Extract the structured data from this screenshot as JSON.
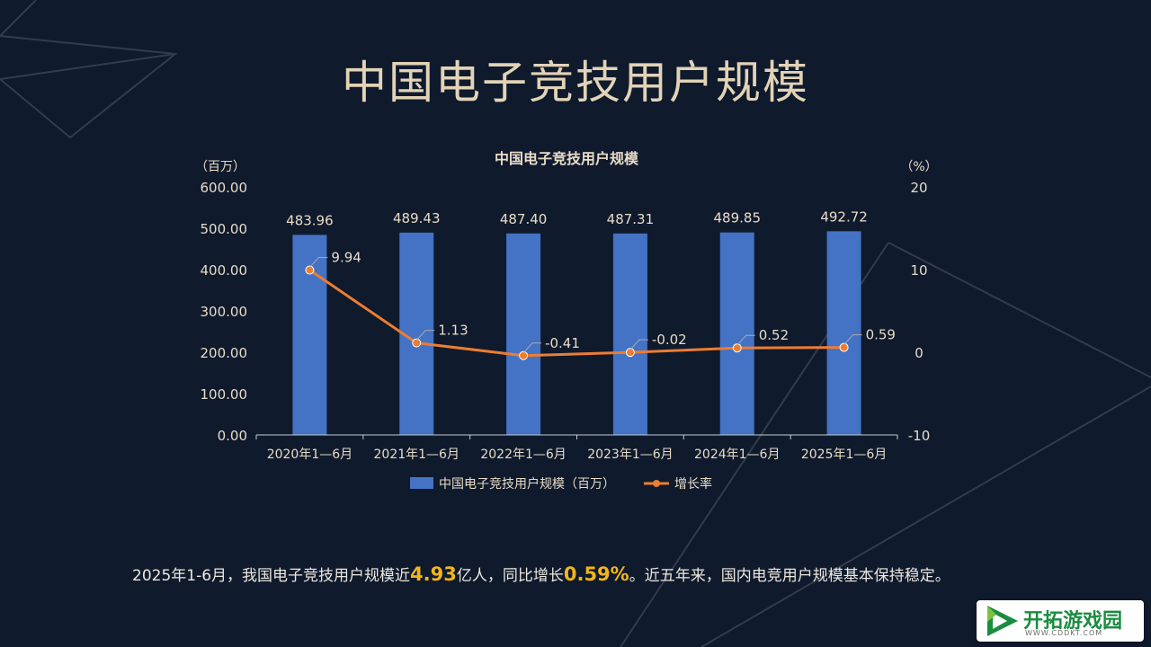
{
  "slide": {
    "title": "中国电子竞技用户规模"
  },
  "chart_data": {
    "type": "bar",
    "title": "中国电子竞技用户规模",
    "y_left_unit": "（百万）",
    "y_right_unit": "（%）",
    "categories": [
      "2020年1—6月",
      "2021年1—6月",
      "2022年1—6月",
      "2023年1—6月",
      "2024年1—6月",
      "2025年1—6月"
    ],
    "series": [
      {
        "name": "中国电子竞技用户规模（百万）",
        "type": "bar",
        "axis": "left",
        "values": [
          483.96,
          489.43,
          487.4,
          487.31,
          489.85,
          492.72
        ],
        "labels": [
          "483.96",
          "489.43",
          "487.40",
          "487.31",
          "489.85",
          "492.72"
        ],
        "color": "#4472c4"
      },
      {
        "name": "增长率",
        "type": "line",
        "axis": "right",
        "values": [
          9.94,
          1.13,
          -0.41,
          -0.02,
          0.52,
          0.59
        ],
        "labels": [
          "9.94",
          "1.13",
          "-0.41",
          "-0.02",
          "0.52",
          "0.59"
        ],
        "color": "#ed7d31"
      }
    ],
    "y_left": {
      "min": 0,
      "max": 600,
      "ticks": [
        "0.00",
        "100.00",
        "200.00",
        "300.00",
        "400.00",
        "500.00",
        "600.00"
      ]
    },
    "y_right": {
      "min": -10,
      "max": 20,
      "ticks": [
        "-10",
        "0",
        "10",
        "20"
      ]
    },
    "grid": false,
    "legend_position": "bottom"
  },
  "summary": {
    "prefix": "2025年1-6月，我国电子竞技用户规模近",
    "value1": "4.93",
    "middle": "亿人，同比增长",
    "value2": "0.59%",
    "suffix": "。近五年来，国内电竞用户规模基本保持稳定。"
  },
  "watermark": {
    "name": "开拓游戏园",
    "url": "WWW.CDDKT.COM"
  },
  "colors": {
    "background": "#0f1a2d",
    "title": "#e3d3b6",
    "bar": "#4472c4",
    "line": "#ed7d31",
    "highlight": "#f2b51c",
    "watermark_green": "#1a8c3f"
  }
}
